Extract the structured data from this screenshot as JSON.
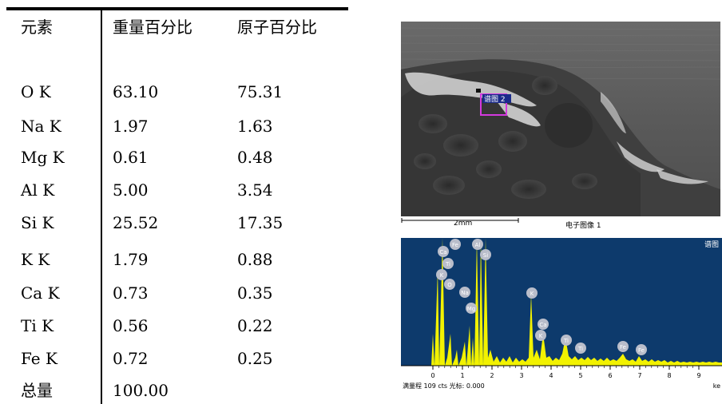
{
  "table": {
    "headers": [
      "元素",
      "重量百分比",
      "原子百分比"
    ],
    "rows": [
      {
        "element": "O K",
        "weight": "63.10",
        "atomic": "75.31"
      },
      {
        "element": "Na K",
        "weight": "1.97",
        "atomic": "1.63"
      },
      {
        "element": "Mg K",
        "weight": "0.61",
        "atomic": "0.48"
      },
      {
        "element": "Al K",
        "weight": "5.00",
        "atomic": "3.54"
      },
      {
        "element": "Si K",
        "weight": "25.52",
        "atomic": "17.35"
      },
      {
        "element": "K K",
        "weight": "1.79",
        "atomic": "0.88"
      },
      {
        "element": "Ca K",
        "weight": "0.73",
        "atomic": "0.35"
      },
      {
        "element": "Ti K",
        "weight": "0.56",
        "atomic": "0.22"
      },
      {
        "element": "Fe K",
        "weight": "0.72",
        "atomic": "0.25"
      }
    ],
    "total_label": "总量",
    "total_value": "100.00"
  },
  "sem_image": {
    "spectrum_label": "谱图 2",
    "scale_label": "2mm",
    "caption": "电子图像 1"
  },
  "spectrum": {
    "title": "谱图",
    "footer": "满量程 109 cts 光标: 0.000",
    "unit": "ke",
    "x_ticks": [
      "0",
      "1",
      "2",
      "3",
      "4",
      "5",
      "6",
      "7",
      "8",
      "9"
    ],
    "peak_labels": [
      "Ca",
      "Ti",
      "K",
      "O",
      "Fe",
      "Na",
      "Mg",
      "Al",
      "Si",
      "K",
      "Ca",
      "K",
      "Ti",
      "Ti",
      "Fe",
      "Fe"
    ],
    "colors": {
      "background": "#0d3a6c",
      "spectrum": "#f2f200",
      "peak_badge": "#b9bdca"
    }
  }
}
